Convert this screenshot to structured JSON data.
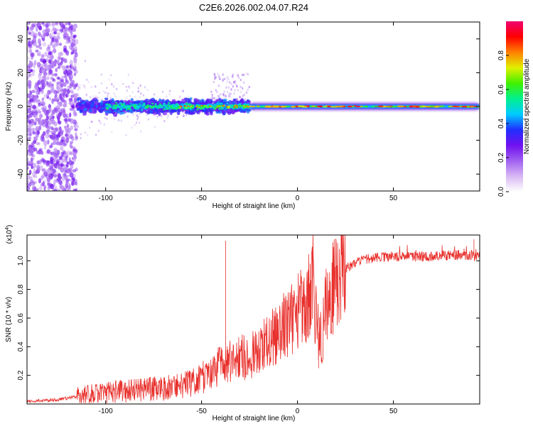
{
  "title": "C2E6.2026.002.04.07.R24",
  "colors": {
    "snr_line": "#e8302c",
    "axis": "#000000"
  },
  "chart_data": [
    {
      "type": "heatmap",
      "xlabel": "Height of straight line (km)",
      "ylabel": "Frequency (Hz)",
      "xlim": [
        -141,
        95
      ],
      "ylim": [
        -50,
        50
      ],
      "xticks": [
        -100,
        -50,
        0,
        50
      ],
      "yticks": [
        -40,
        -20,
        0,
        20,
        40
      ],
      "colorbar": {
        "label": "Normalized spectral amplitude",
        "range": [
          0.0,
          1.0
        ],
        "ticks": [
          0.0,
          0.2,
          0.4,
          0.6,
          0.8
        ],
        "colormap": [
          "#ffffff",
          "#d8b8f4",
          "#a060f0",
          "#7010f0",
          "#2030ff",
          "#00ccff",
          "#00f090",
          "#40f000",
          "#e0f000",
          "#ff8000",
          "#ff0000",
          "#f00070"
        ]
      },
      "features": {
        "noise_band_x": [
          -141,
          -115
        ],
        "scatter_band_x": [
          -115,
          -25
        ],
        "scatter_freq_spread": 6,
        "ridge_x": [
          -25,
          95
        ],
        "ridge_frequency": 0
      }
    },
    {
      "type": "line",
      "xlabel": "Height of straight line (km)",
      "ylabel": "SNR (10 * v/v)",
      "scale_label": "(x10",
      "scale_exponent": "4",
      "scale_suffix": ")",
      "xlim": [
        -141,
        95
      ],
      "ylim": [
        0.0,
        1.18
      ],
      "xticks": [
        -100,
        -50,
        0,
        50
      ],
      "yticks": [
        0.2,
        0.4,
        0.6,
        0.8,
        1.0
      ],
      "trend": {
        "x": [
          -141,
          -125,
          -115,
          -100,
          -90,
          -80,
          -70,
          -60,
          -50,
          -45,
          -40,
          -35,
          -30,
          -25,
          -20,
          -15,
          -10,
          -5,
          0,
          5,
          8,
          10,
          12,
          15,
          20,
          25,
          30,
          35,
          40,
          50,
          60,
          70,
          80,
          90,
          95
        ],
        "y": [
          0.02,
          0.03,
          0.05,
          0.08,
          0.09,
          0.1,
          0.11,
          0.13,
          0.18,
          0.22,
          0.28,
          0.3,
          0.32,
          0.34,
          0.38,
          0.44,
          0.52,
          0.58,
          0.64,
          0.74,
          0.88,
          0.55,
          0.45,
          0.7,
          0.86,
          0.94,
          0.99,
          1.01,
          1.02,
          1.03,
          1.03,
          1.03,
          1.04,
          1.04,
          1.02
        ]
      },
      "spikes": [
        {
          "x": -37.5,
          "y": 1.14
        },
        {
          "x": 8.0,
          "y": 1.08
        },
        {
          "x": 11.0,
          "y": 0.25
        },
        {
          "x": 92.0,
          "y": 1.15
        }
      ]
    }
  ]
}
